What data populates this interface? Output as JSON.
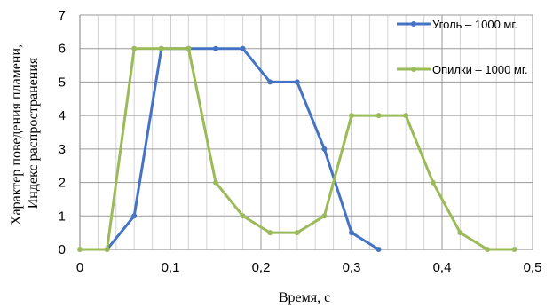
{
  "chart_data": {
    "type": "line",
    "xlabel": "Время, с",
    "ylabel_lines": [
      "Характер поведения пламени,",
      "Индекс распространения"
    ],
    "xlim": [
      0,
      0.5
    ],
    "ylim": [
      0,
      7
    ],
    "x_ticks": [
      {
        "v": 0,
        "label": "0"
      },
      {
        "v": 0.1,
        "label": "0,1"
      },
      {
        "v": 0.2,
        "label": "0,2"
      },
      {
        "v": 0.3,
        "label": "0,3"
      },
      {
        "v": 0.4,
        "label": "0,4"
      },
      {
        "v": 0.5,
        "label": "0,5"
      }
    ],
    "y_ticks": [
      {
        "v": 0,
        "label": "0"
      },
      {
        "v": 1,
        "label": "1"
      },
      {
        "v": 2,
        "label": "2"
      },
      {
        "v": 3,
        "label": "3"
      },
      {
        "v": 4,
        "label": "4"
      },
      {
        "v": 5,
        "label": "5"
      },
      {
        "v": 6,
        "label": "6"
      },
      {
        "v": 7,
        "label": "7"
      }
    ],
    "grid": true,
    "legend_position": "right",
    "series": [
      {
        "name": "Уголь – 1000 мг.",
        "color": "#4472C4",
        "x": [
          0.03,
          0.06,
          0.09,
          0.12,
          0.15,
          0.18,
          0.21,
          0.24,
          0.27,
          0.3,
          0.33
        ],
        "y": [
          0,
          1,
          6,
          6,
          6,
          6,
          5,
          5,
          3,
          0.5,
          0
        ]
      },
      {
        "name": "Опилки – 1000 мг.",
        "color": "#9BBB59",
        "x": [
          0,
          0.03,
          0.06,
          0.09,
          0.12,
          0.15,
          0.18,
          0.21,
          0.24,
          0.27,
          0.3,
          0.33,
          0.36,
          0.39,
          0.42,
          0.45,
          0.48
        ],
        "y": [
          0,
          0,
          6,
          6,
          6,
          2,
          1,
          0.5,
          0.5,
          1,
          4,
          4,
          4,
          2,
          0.5,
          0,
          0
        ]
      }
    ]
  }
}
